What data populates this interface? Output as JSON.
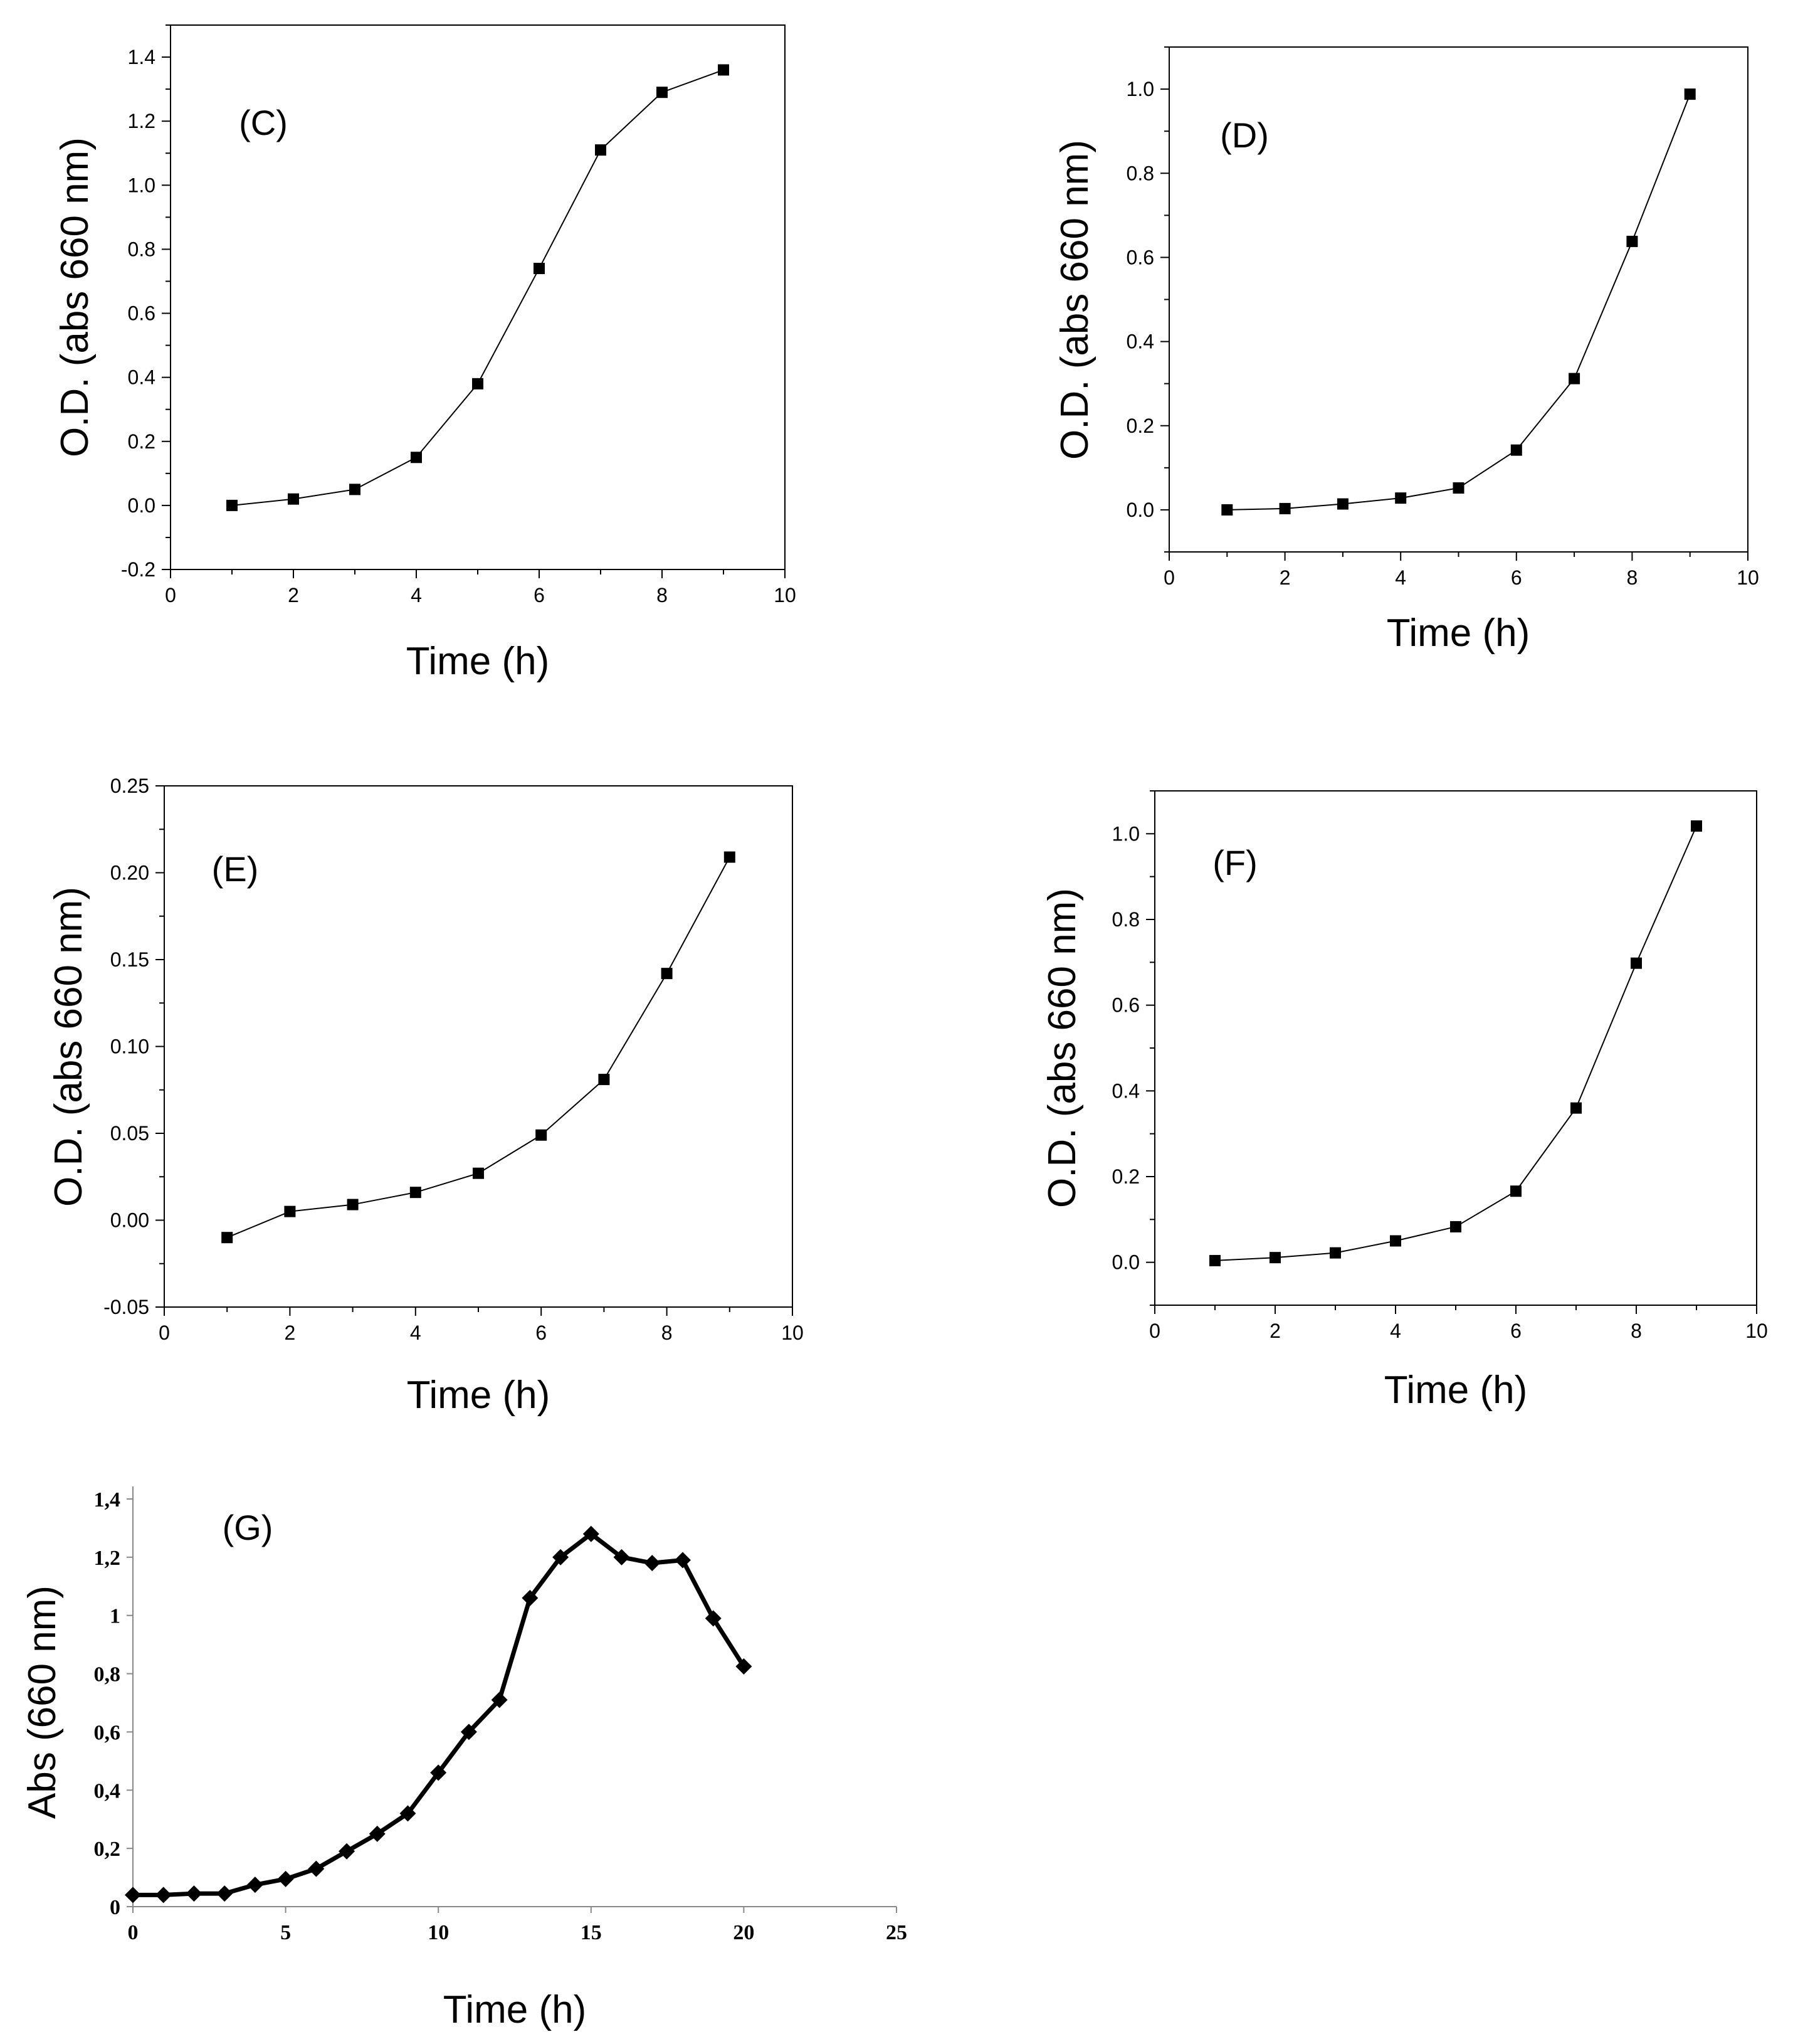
{
  "chart_data": [
    {
      "type": "line",
      "panel_label": "(C)",
      "title": "",
      "xlabel": "Time (h)",
      "ylabel": "O.D. (abs 660 nm)",
      "xlim": [
        0,
        10
      ],
      "ylim": [
        -0.2,
        1.5
      ],
      "x_ticks": [
        0,
        2,
        4,
        6,
        8,
        10
      ],
      "x_tick_labels": [
        "0",
        "2",
        "4",
        "6",
        "8",
        "10"
      ],
      "y_ticks": [
        -0.2,
        0.0,
        0.2,
        0.4,
        0.6,
        0.8,
        1.0,
        1.2,
        1.4
      ],
      "y_tick_labels": [
        "-0.2",
        "0.0",
        "0.2",
        "0.4",
        "0.6",
        "0.8",
        "1.0",
        "1.2",
        "1.4"
      ],
      "marker": "square",
      "series": [
        {
          "name": "O.D.",
          "x": [
            1,
            2,
            3,
            4,
            5,
            6,
            7,
            8,
            9
          ],
          "values": [
            0.0,
            0.02,
            0.05,
            0.15,
            0.38,
            0.74,
            1.11,
            1.29,
            1.36
          ]
        }
      ]
    },
    {
      "type": "line",
      "panel_label": "(D)",
      "title": "",
      "xlabel": "Time (h)",
      "ylabel": "O.D. (abs 660 nm)",
      "xlim": [
        0,
        10
      ],
      "ylim": [
        -0.1,
        1.1
      ],
      "x_ticks": [
        0,
        2,
        4,
        6,
        8,
        10
      ],
      "x_tick_labels": [
        "0",
        "2",
        "4",
        "6",
        "8",
        "10"
      ],
      "y_ticks": [
        0.0,
        0.2,
        0.4,
        0.6,
        0.8,
        1.0
      ],
      "y_tick_labels": [
        "0.0",
        "0.2",
        "0.4",
        "0.6",
        "0.8",
        "1.0"
      ],
      "marker": "square",
      "series": [
        {
          "name": "O.D.",
          "x": [
            1,
            2,
            3,
            4,
            5,
            6,
            7,
            8,
            9
          ],
          "values": [
            0.0,
            0.003,
            0.014,
            0.028,
            0.052,
            0.142,
            0.312,
            0.638,
            0.988
          ]
        }
      ]
    },
    {
      "type": "line",
      "panel_label": "(E)",
      "title": "",
      "xlabel": "Time (h)",
      "ylabel": "O.D. (abs 660 nm)",
      "xlim": [
        0,
        10
      ],
      "ylim": [
        -0.05,
        0.25
      ],
      "x_ticks": [
        0,
        2,
        4,
        6,
        8,
        10
      ],
      "x_tick_labels": [
        "0",
        "2",
        "4",
        "6",
        "8",
        "10"
      ],
      "y_ticks": [
        -0.05,
        0.0,
        0.05,
        0.1,
        0.15,
        0.2,
        0.25
      ],
      "y_tick_labels": [
        "-0.05",
        "0.00",
        "0.05",
        "0.10",
        "0.15",
        "0.20",
        "0.25"
      ],
      "marker": "square",
      "series": [
        {
          "name": "O.D.",
          "x": [
            1,
            2,
            3,
            4,
            5,
            6,
            7,
            8,
            9
          ],
          "values": [
            -0.01,
            0.005,
            0.009,
            0.016,
            0.027,
            0.049,
            0.081,
            0.142,
            0.209
          ]
        }
      ]
    },
    {
      "type": "line",
      "panel_label": "(F)",
      "title": "",
      "xlabel": "Time (h)",
      "ylabel": "O.D. (abs 660 nm)",
      "xlim": [
        0,
        10
      ],
      "ylim": [
        -0.1,
        1.1
      ],
      "x_ticks": [
        0,
        2,
        4,
        6,
        8,
        10
      ],
      "x_tick_labels": [
        "0",
        "2",
        "4",
        "6",
        "8",
        "10"
      ],
      "y_ticks": [
        0.0,
        0.2,
        0.4,
        0.6,
        0.8,
        1.0
      ],
      "y_tick_labels": [
        "0.0",
        "0.2",
        "0.4",
        "0.6",
        "0.8",
        "1.0"
      ],
      "marker": "square",
      "series": [
        {
          "name": "O.D.",
          "x": [
            1,
            2,
            3,
            4,
            5,
            6,
            7,
            8,
            9
          ],
          "values": [
            0.004,
            0.011,
            0.022,
            0.05,
            0.083,
            0.166,
            0.36,
            0.698,
            1.018
          ]
        }
      ]
    },
    {
      "type": "line",
      "panel_label": "(G)",
      "title": "",
      "xlabel": "Time (h)",
      "ylabel": "Abs (660 nm)",
      "xlim": [
        0,
        25
      ],
      "ylim": [
        0,
        1.4
      ],
      "x_ticks": [
        0,
        5,
        10,
        15,
        20,
        25
      ],
      "x_tick_labels": [
        "0",
        "5",
        "10",
        "15",
        "20",
        "25"
      ],
      "y_ticks": [
        0,
        0.2,
        0.4,
        0.6,
        0.8,
        1.0,
        1.2,
        1.4
      ],
      "y_tick_labels": [
        "0",
        "0,2",
        "0,4",
        "0,6",
        "0,8",
        "1",
        "1,2",
        "1,4"
      ],
      "marker": "diamond",
      "series": [
        {
          "name": "Abs",
          "x": [
            0,
            1,
            2,
            3,
            4,
            5,
            6,
            7,
            8,
            9,
            10,
            11,
            12,
            13,
            14,
            15,
            16,
            17,
            18,
            19,
            20
          ],
          "values": [
            0.04,
            0.04,
            0.045,
            0.045,
            0.075,
            0.095,
            0.13,
            0.19,
            0.25,
            0.32,
            0.46,
            0.6,
            0.71,
            1.06,
            1.2,
            1.28,
            1.2,
            1.18,
            1.19,
            0.99,
            0.825
          ]
        }
      ]
    }
  ]
}
